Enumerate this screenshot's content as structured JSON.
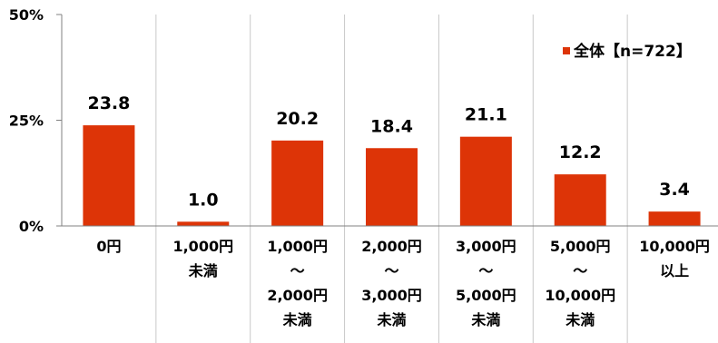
{
  "chart_data": {
    "type": "bar",
    "categories": [
      [
        "0円"
      ],
      [
        "1,000円",
        "未満"
      ],
      [
        "1,000円",
        "～",
        "2,000円",
        "未満"
      ],
      [
        "2,000円",
        "～",
        "3,000円",
        "未満"
      ],
      [
        "3,000円",
        "～",
        "5,000円",
        "未満"
      ],
      [
        "5,000円",
        "～",
        "10,000円",
        "未満"
      ],
      [
        "10,000円",
        "以上"
      ]
    ],
    "series": [
      {
        "name": "全体【n=722】",
        "values": [
          23.8,
          1.0,
          20.2,
          18.4,
          21.1,
          12.2,
          3.4
        ]
      }
    ],
    "value_labels": [
      "23.8",
      "1.0",
      "20.2",
      "18.4",
      "21.1",
      "12.2",
      "3.4"
    ],
    "ylim": [
      0,
      50
    ],
    "yticks": [
      0,
      25,
      50
    ],
    "ytick_labels": [
      "0%",
      "25%",
      "50%"
    ],
    "bar_color": "#dd3407",
    "gridlines": "vertical category separators",
    "legend_position": "top-right"
  }
}
